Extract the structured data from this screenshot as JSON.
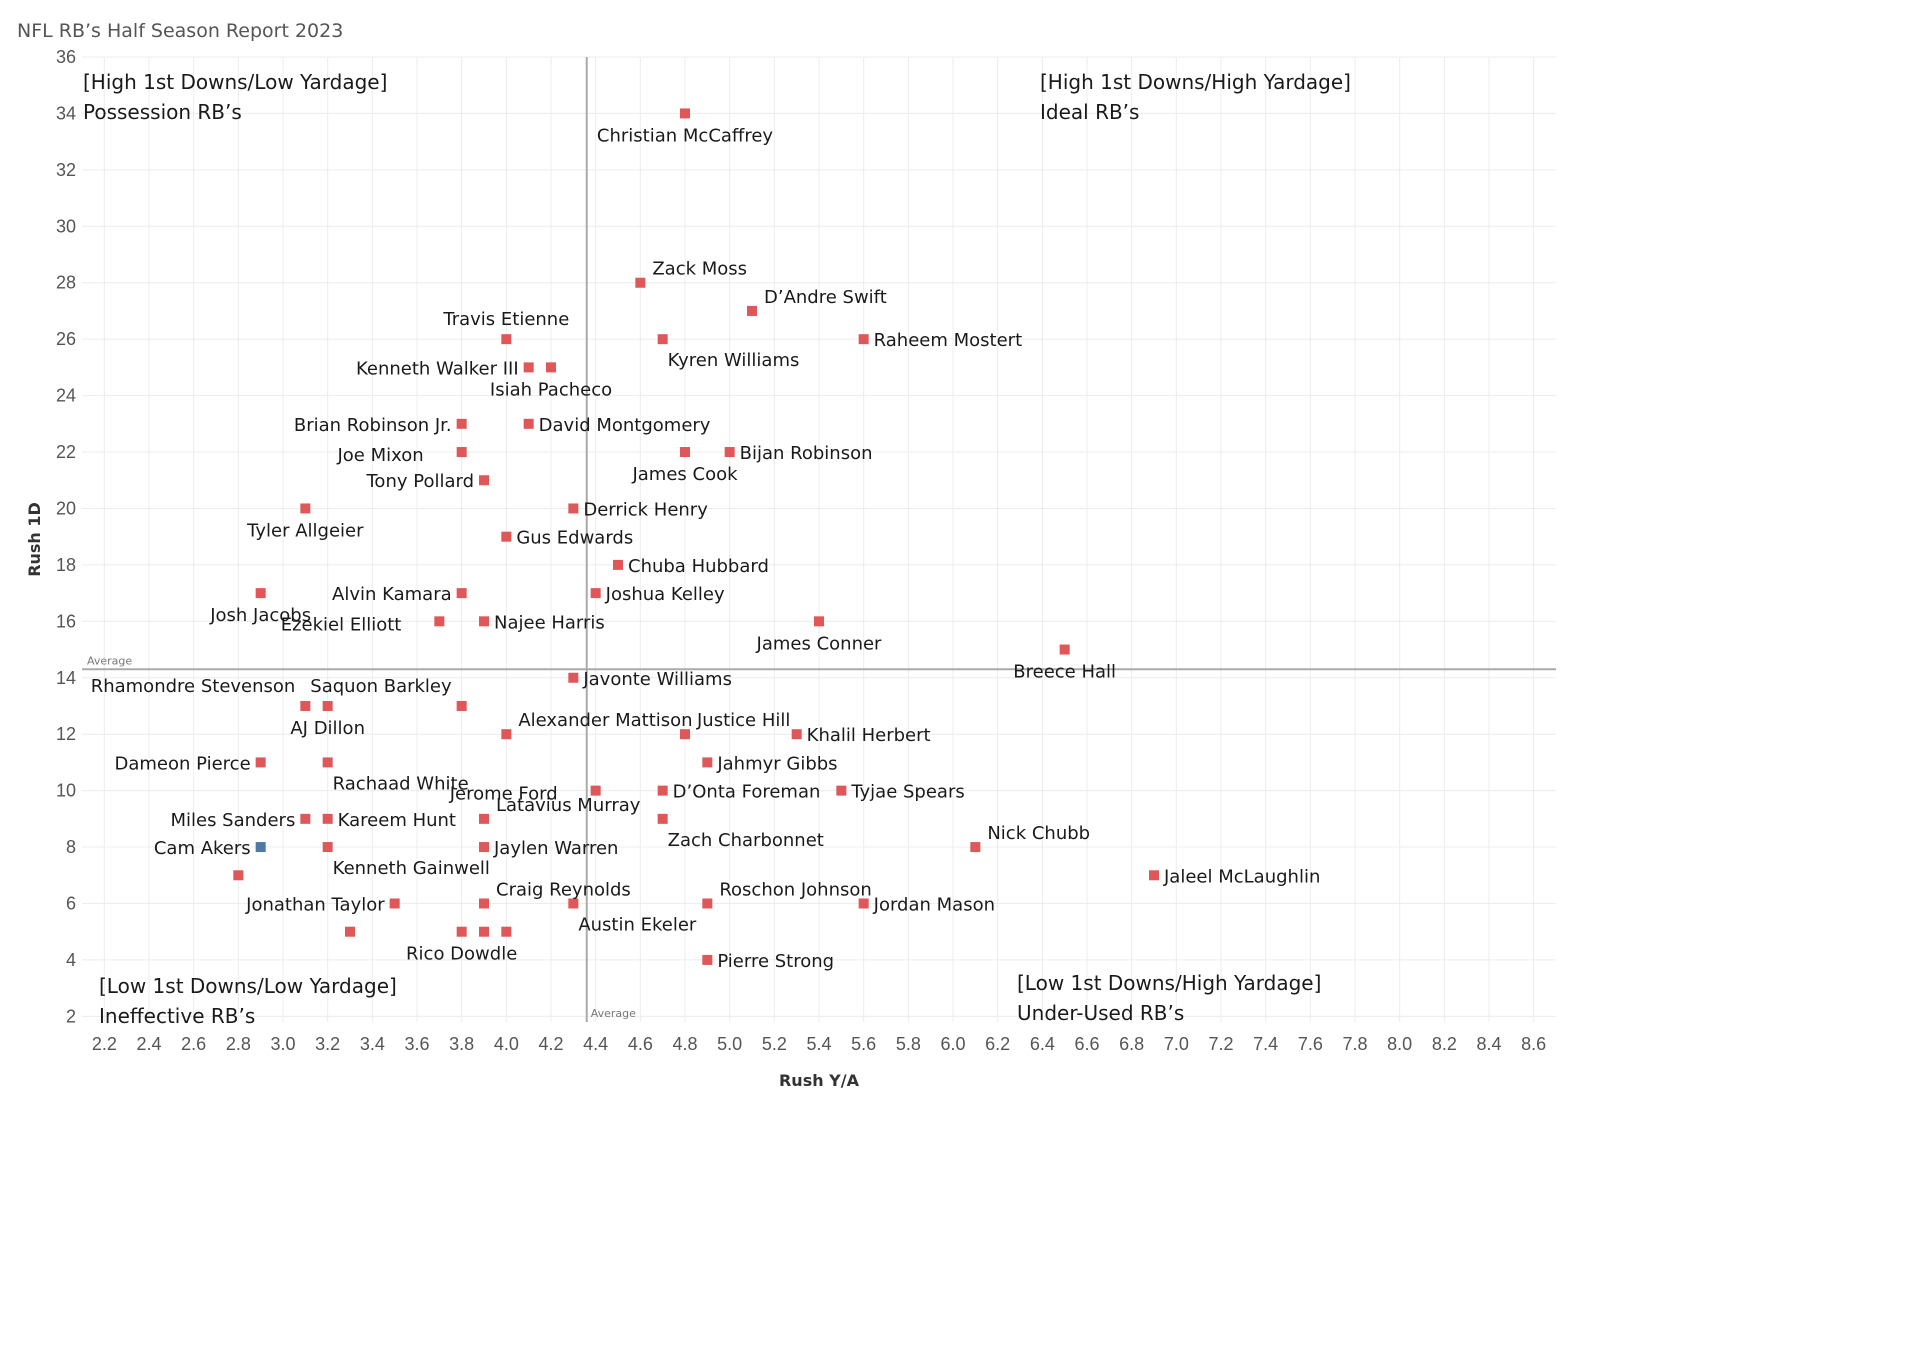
{
  "title": "NFL RB’s Half Season Report 2023",
  "colors": {
    "default": "#e05759",
    "highlight": "#4e79a7",
    "refline": "#aaaaaa"
  },
  "chart_data": {
    "type": "scatter",
    "title": "NFL RB’s Half Season Report 2023",
    "xlabel": "Rush Y/A",
    "ylabel": "Rush 1D",
    "xlim": [
      2.1,
      8.7
    ],
    "ylim": [
      1.8,
      36
    ],
    "x_ticks": [
      "2.2",
      "2.4",
      "2.6",
      "2.8",
      "3.0",
      "3.2",
      "3.4",
      "3.6",
      "3.8",
      "4.0",
      "4.2",
      "4.4",
      "4.6",
      "4.8",
      "5.0",
      "5.2",
      "5.4",
      "5.6",
      "5.8",
      "6.0",
      "6.2",
      "6.4",
      "6.6",
      "6.8",
      "7.0",
      "7.2",
      "7.4",
      "7.6",
      "7.8",
      "8.0",
      "8.2",
      "8.4",
      "8.6"
    ],
    "y_ticks": [
      "2",
      "4",
      "6",
      "8",
      "10",
      "12",
      "14",
      "16",
      "18",
      "20",
      "22",
      "24",
      "26",
      "28",
      "30",
      "32",
      "34",
      "36"
    ],
    "grid": true,
    "reference_lines": {
      "x_label": "Average",
      "x_value": 4.36,
      "y_label": "Average",
      "y_value": 14.3
    },
    "quadrants": [
      {
        "pos": "top-left",
        "line1": "[High 1st Downs/Low Yardage]",
        "line2": "Possession RB’s"
      },
      {
        "pos": "top-right",
        "line1": "[High 1st Downs/High Yardage]",
        "line2": "Ideal RB’s"
      },
      {
        "pos": "bottom-left",
        "line1": "[Low 1st Downs/Low Yardage]",
        "line2": "Ineffective RB’s"
      },
      {
        "pos": "bottom-right",
        "line1": "[Low 1st Downs/High Yardage]",
        "line2": "Under-Used RB’s"
      }
    ],
    "points": [
      {
        "name": "Christian McCaffrey",
        "x": 4.8,
        "y": 34,
        "label_pos": "below"
      },
      {
        "name": "Zack Moss",
        "x": 4.6,
        "y": 28,
        "label_pos": "above-right"
      },
      {
        "name": "D’Andre Swift",
        "x": 5.1,
        "y": 27,
        "label_pos": "above-right"
      },
      {
        "name": "Raheem Mostert",
        "x": 5.6,
        "y": 26,
        "label_pos": "right"
      },
      {
        "name": "Kyren Williams",
        "x": 4.7,
        "y": 26,
        "label_pos": "below-right"
      },
      {
        "name": "Travis Etienne",
        "x": 4.0,
        "y": 26,
        "label_pos": "above"
      },
      {
        "name": "Kenneth Walker III",
        "x": 4.1,
        "y": 25,
        "label_pos": "left"
      },
      {
        "name": "Isiah Pacheco",
        "x": 4.2,
        "y": 25,
        "label_pos": "below"
      },
      {
        "name": "Brian Robinson Jr.",
        "x": 3.8,
        "y": 23,
        "label_pos": "left"
      },
      {
        "name": "David Montgomery",
        "x": 4.1,
        "y": 23,
        "label_pos": "right"
      },
      {
        "name": "Bijan Robinson",
        "x": 5.0,
        "y": 22,
        "label_pos": "right"
      },
      {
        "name": "James Cook",
        "x": 4.8,
        "y": 22,
        "label_pos": "below"
      },
      {
        "name": "Joe Mixon",
        "x": 3.8,
        "y": 22,
        "label_pos": "below-left"
      },
      {
        "name": "Tony Pollard",
        "x": 3.9,
        "y": 21,
        "label_pos": "left"
      },
      {
        "name": "Tyler Allgeier",
        "x": 3.1,
        "y": 20,
        "label_pos": "below"
      },
      {
        "name": "Derrick Henry",
        "x": 4.3,
        "y": 20,
        "label_pos": "right"
      },
      {
        "name": "Gus Edwards",
        "x": 4.0,
        "y": 19,
        "label_pos": "right"
      },
      {
        "name": "Chuba Hubbard",
        "x": 4.5,
        "y": 18,
        "label_pos": "right"
      },
      {
        "name": "Alvin Kamara",
        "x": 3.8,
        "y": 17,
        "label_pos": "left"
      },
      {
        "name": "Joshua Kelley",
        "x": 4.4,
        "y": 17,
        "label_pos": "right"
      },
      {
        "name": "Josh Jacobs",
        "x": 2.9,
        "y": 17,
        "label_pos": "below"
      },
      {
        "name": "Ezekiel Elliott",
        "x": 3.7,
        "y": 16,
        "label_pos": "below-left"
      },
      {
        "name": "Najee Harris",
        "x": 3.9,
        "y": 16,
        "label_pos": "right"
      },
      {
        "name": "James Conner",
        "x": 5.4,
        "y": 16,
        "label_pos": "below"
      },
      {
        "name": "Breece Hall",
        "x": 6.5,
        "y": 15,
        "label_pos": "below"
      },
      {
        "name": "Javonte Williams",
        "x": 4.3,
        "y": 14,
        "label_pos": "right"
      },
      {
        "name": "Rhamondre Stevenson",
        "x": 3.1,
        "y": 13,
        "label_pos": "above-left"
      },
      {
        "name": "AJ Dillon",
        "x": 3.2,
        "y": 13,
        "label_pos": "below"
      },
      {
        "name": "Saquon Barkley",
        "x": 3.8,
        "y": 13,
        "label_pos": "above-left"
      },
      {
        "name": "Alexander Mattison",
        "x": 4.0,
        "y": 12,
        "label_pos": "above-right"
      },
      {
        "name": "Justice Hill",
        "x": 4.8,
        "y": 12,
        "label_pos": "above-right"
      },
      {
        "name": "Khalil Herbert",
        "x": 5.3,
        "y": 12,
        "label_pos": "right"
      },
      {
        "name": "Dameon Pierce",
        "x": 2.9,
        "y": 11,
        "label_pos": "left"
      },
      {
        "name": "Rachaad White",
        "x": 3.2,
        "y": 11,
        "label_pos": "below-right"
      },
      {
        "name": "Jahmyr Gibbs",
        "x": 4.9,
        "y": 11,
        "label_pos": "right"
      },
      {
        "name": "Jerome Ford",
        "x": 4.4,
        "y": 10,
        "label_pos": "below-left"
      },
      {
        "name": "D’Onta Foreman",
        "x": 4.7,
        "y": 10,
        "label_pos": "right"
      },
      {
        "name": "Tyjae Spears",
        "x": 5.5,
        "y": 10,
        "label_pos": "right"
      },
      {
        "name": "Miles Sanders",
        "x": 3.1,
        "y": 9,
        "label_pos": "left"
      },
      {
        "name": "Kareem Hunt",
        "x": 3.2,
        "y": 9,
        "label_pos": "right"
      },
      {
        "name": "Latavius Murray",
        "x": 3.9,
        "y": 9,
        "label_pos": "above-right"
      },
      {
        "name": "Zach Charbonnet",
        "x": 4.7,
        "y": 9,
        "label_pos": "below-right"
      },
      {
        "name": "Cam Akers",
        "x": 2.9,
        "y": 8,
        "label_pos": "left",
        "highlight": true
      },
      {
        "name": "Kenneth Gainwell",
        "x": 3.2,
        "y": 8,
        "label_pos": "below-right"
      },
      {
        "name": "Jaylen Warren",
        "x": 3.9,
        "y": 8,
        "label_pos": "right"
      },
      {
        "name": "Nick Chubb",
        "x": 6.1,
        "y": 8,
        "label_pos": "above-right"
      },
      {
        "name": "Jaleel McLaughlin",
        "x": 6.9,
        "y": 7,
        "label_pos": "right"
      },
      {
        "name": "Craig Reynolds",
        "x": 3.9,
        "y": 6,
        "label_pos": "above-right"
      },
      {
        "name": "Jonathan Taylor",
        "x": 3.5,
        "y": 6,
        "label_pos": "left"
      },
      {
        "name": "Austin Ekeler",
        "x": 4.3,
        "y": 6,
        "label_pos": "below-right"
      },
      {
        "name": "Roschon Johnson",
        "x": 4.9,
        "y": 6,
        "label_pos": "above-right"
      },
      {
        "name": "Jordan Mason",
        "x": 5.6,
        "y": 6,
        "label_pos": "right"
      },
      {
        "name": "Rico Dowdle",
        "x": 3.8,
        "y": 5,
        "label_pos": "below"
      },
      {
        "name": "Pierre Strong",
        "x": 4.9,
        "y": 4,
        "label_pos": "right"
      },
      {
        "name": "",
        "x": 2.8,
        "y": 7,
        "label_pos": "none"
      },
      {
        "name": "",
        "x": 3.3,
        "y": 5,
        "label_pos": "none"
      },
      {
        "name": "",
        "x": 3.9,
        "y": 5,
        "label_pos": "none"
      },
      {
        "name": "",
        "x": 4.0,
        "y": 5,
        "label_pos": "none"
      }
    ]
  }
}
